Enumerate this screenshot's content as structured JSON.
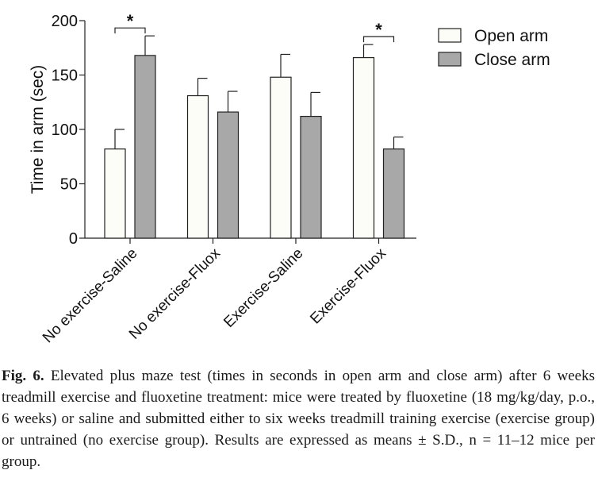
{
  "chart_data": {
    "type": "bar",
    "categories": [
      "No exercise-Saline",
      "No exercise-Fluox",
      "Exercise-Saline",
      "Exercise-Fluox"
    ],
    "series": [
      {
        "name": "Open arm",
        "values": [
          82,
          131,
          148,
          166
        ],
        "errors": [
          18,
          16,
          21,
          12
        ],
        "color": "#fdfdf8"
      },
      {
        "name": "Close arm",
        "values": [
          168,
          116,
          112,
          82
        ],
        "errors": [
          18,
          19,
          22,
          11
        ],
        "color": "#a8a8a8"
      }
    ],
    "significance": [
      {
        "category_index": 0,
        "label": "*"
      },
      {
        "category_index": 3,
        "label": "*"
      }
    ],
    "ylabel": "Time in arm (sec)",
    "xlabel": "",
    "ylim": [
      0,
      200
    ],
    "yticks": [
      0,
      50,
      100,
      150,
      200
    ],
    "legend_position": "top-right",
    "grid": false
  },
  "caption": {
    "label": "Fig. 6.",
    "text": "Elevated plus maze test (times in seconds in open arm and close arm) after 6 weeks treadmill exercise and fluoxetine treatment: mice were treated by fluoxetine (18 mg/kg/day, p.o., 6 weeks) or saline and submitted either to six weeks treadmill training exercise (exercise group) or untrained (no exercise group). Results are expressed as means ± S.D., n = 11–12 mice per group."
  }
}
